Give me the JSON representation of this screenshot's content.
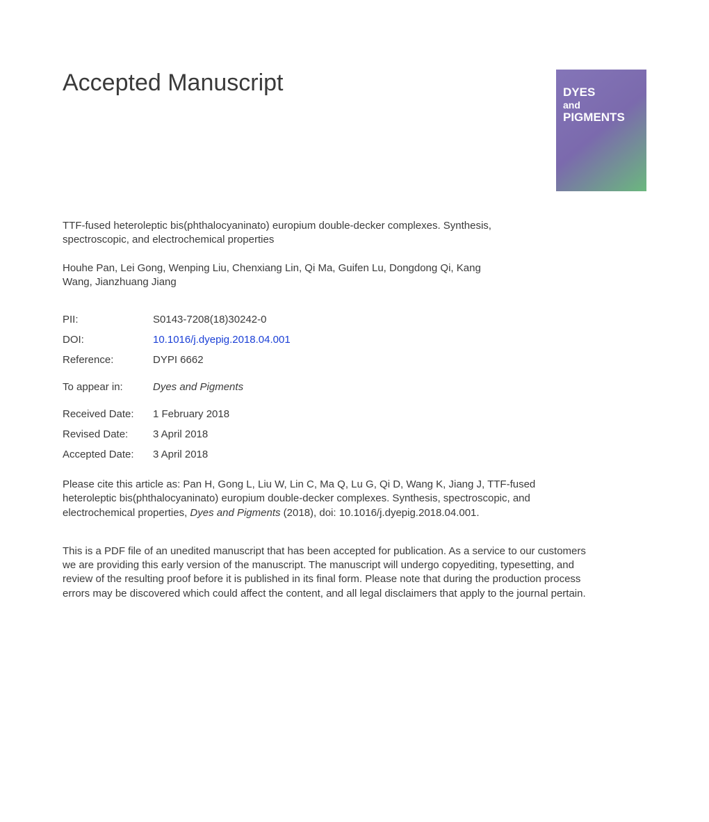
{
  "header": {
    "main_title": "Accepted Manuscript"
  },
  "journal_cover": {
    "line1": "DYES",
    "line2": "and",
    "line3": "PIGMENTS",
    "background_colors": [
      "#8475b8",
      "#7b6aad",
      "#6bb87e"
    ],
    "text_color": "#ffffff"
  },
  "article": {
    "title": "TTF-fused heteroleptic bis(phthalocyaninato) europium double-decker complexes. Synthesis, spectroscopic, and electrochemical properties",
    "authors": "Houhe Pan, Lei Gong, Wenping Liu, Chenxiang Lin, Qi Ma, Guifen Lu, Dongdong Qi, Kang Wang, Jianzhuang Jiang"
  },
  "metadata": {
    "pii": {
      "label": "PII:",
      "value": "S0143-7208(18)30242-0"
    },
    "doi": {
      "label": "DOI:",
      "value": "10.1016/j.dyepig.2018.04.001",
      "color": "#1a3fd6"
    },
    "reference": {
      "label": "Reference:",
      "value": "DYPI 6662"
    },
    "to_appear": {
      "label": "To appear in:",
      "value": "Dyes and Pigments"
    },
    "received": {
      "label": "Received Date:",
      "value": "1 February 2018"
    },
    "revised": {
      "label": "Revised Date:",
      "value": "3 April 2018"
    },
    "accepted": {
      "label": "Accepted Date:",
      "value": "3 April 2018"
    }
  },
  "citation": {
    "prefix": "Please cite this article as: Pan H, Gong L, Liu W, Lin C, Ma Q, Lu G, Qi D, Wang K, Jiang J, TTF-fused heteroleptic bis(phthalocyaninato) europium double-decker complexes. Synthesis, spectroscopic, and electrochemical properties, ",
    "journal": "Dyes and Pigments",
    "suffix": " (2018), doi: 10.1016/j.dyepig.2018.04.001."
  },
  "disclaimer": {
    "text": "This is a PDF file of an unedited manuscript that has been accepted for publication. As a service to our customers we are providing this early version of the manuscript. The manuscript will undergo copyediting, typesetting, and review of the resulting proof before it is published in its final form. Please note that during the production process errors may be discovered which could affect the content, and all legal disclaimers that apply to the journal pertain."
  },
  "styling": {
    "body_text_color": "#3a3a3a",
    "background_color": "#ffffff",
    "title_fontsize": 34,
    "body_fontsize": 15,
    "doi_link_color": "#1a3fd6"
  }
}
